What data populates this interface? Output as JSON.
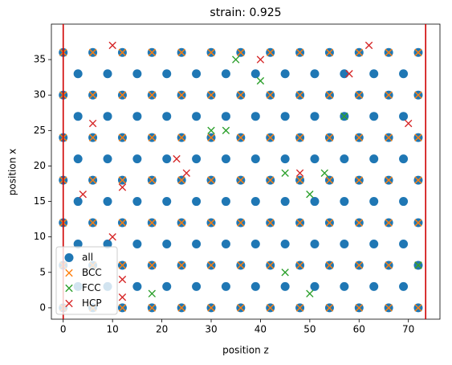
{
  "chart_data": {
    "type": "scatter",
    "title": "strain: 0.925",
    "xlabel": "position z",
    "ylabel": "position x",
    "xlim": [
      -2.4,
      76.4
    ],
    "ylim": [
      -1.6,
      40.0
    ],
    "xticks": [
      0,
      10,
      20,
      30,
      40,
      50,
      60,
      70
    ],
    "yticks": [
      0,
      5,
      10,
      15,
      20,
      25,
      30,
      35
    ],
    "vlines": [
      0,
      73.5
    ],
    "vline_color": "#d00000",
    "legend": "lower left",
    "series": [
      {
        "name": "all",
        "color": "#1f77b4",
        "marker": "circle",
        "x": [
          0,
          6,
          12,
          18,
          24,
          30,
          36,
          42,
          48,
          54,
          60,
          66,
          72,
          3,
          9,
          15,
          21,
          27,
          33,
          39,
          45,
          51,
          57,
          63,
          69,
          0,
          6,
          12,
          18,
          24,
          30,
          36,
          42,
          48,
          54,
          60,
          66,
          72,
          3,
          9,
          15,
          21,
          27,
          33,
          39,
          45,
          51,
          57,
          63,
          69,
          0,
          6,
          12,
          18,
          24,
          30,
          36,
          42,
          48,
          54,
          60,
          66,
          72,
          3,
          9,
          15,
          21,
          27,
          33,
          39,
          45,
          51,
          57,
          63,
          69,
          0,
          6,
          12,
          18,
          24,
          30,
          36,
          42,
          48,
          54,
          60,
          66,
          72,
          3,
          9,
          15,
          21,
          27,
          33,
          39,
          45,
          51,
          57,
          63,
          69,
          0,
          6,
          12,
          18,
          24,
          30,
          36,
          42,
          48,
          54,
          60,
          66,
          72,
          3,
          9,
          15,
          21,
          27,
          33,
          39,
          45,
          51,
          57,
          63,
          69,
          0,
          6,
          12,
          18,
          24,
          30,
          36,
          42,
          48,
          54,
          60,
          66,
          72,
          3,
          9,
          15,
          21,
          27,
          33,
          39,
          45,
          51,
          57,
          63,
          69,
          0,
          6,
          12,
          18,
          24,
          30,
          36,
          42,
          48,
          54,
          60,
          66,
          72
        ],
        "y": [
          0,
          0,
          0,
          0,
          0,
          0,
          0,
          0,
          0,
          0,
          0,
          0,
          0,
          3,
          3,
          3,
          3,
          3,
          3,
          3,
          3,
          3,
          3,
          3,
          3,
          6,
          6,
          6,
          6,
          6,
          6,
          6,
          6,
          6,
          6,
          6,
          6,
          6,
          9,
          9,
          9,
          9,
          9,
          9,
          9,
          9,
          9,
          9,
          9,
          9,
          12,
          12,
          12,
          12,
          12,
          12,
          12,
          12,
          12,
          12,
          12,
          12,
          12,
          15,
          15,
          15,
          15,
          15,
          15,
          15,
          15,
          15,
          15,
          15,
          15,
          18,
          18,
          18,
          18,
          18,
          18,
          18,
          18,
          18,
          18,
          18,
          18,
          18,
          21,
          21,
          21,
          21,
          21,
          21,
          21,
          21,
          21,
          21,
          21,
          21,
          24,
          24,
          24,
          24,
          24,
          24,
          24,
          24,
          24,
          24,
          24,
          24,
          24,
          27,
          27,
          27,
          27,
          27,
          27,
          27,
          27,
          27,
          27,
          27,
          27,
          30,
          30,
          30,
          30,
          30,
          30,
          30,
          30,
          30,
          30,
          30,
          30,
          30,
          33,
          33,
          33,
          33,
          33,
          33,
          33,
          33,
          33,
          33,
          33,
          33,
          36,
          36,
          36,
          36,
          36,
          36,
          36,
          36,
          36,
          36,
          36,
          36,
          36
        ]
      },
      {
        "name": "BCC",
        "color": "#ff7f0e",
        "marker": "x",
        "x": [
          0,
          6,
          12,
          18,
          24,
          30,
          36,
          42,
          48,
          54,
          60,
          66,
          72,
          0,
          6,
          12,
          18,
          24,
          30,
          36,
          42,
          48,
          54,
          60,
          66,
          72,
          0,
          6,
          12,
          18,
          24,
          30,
          36,
          42,
          48,
          54,
          60,
          66,
          72,
          0,
          6,
          12,
          18,
          24,
          30,
          36,
          42,
          48,
          54,
          60,
          66,
          72,
          0,
          6,
          12,
          18,
          24,
          30,
          36,
          42,
          48,
          54,
          60,
          66,
          72,
          0,
          6,
          12,
          18,
          24,
          30,
          36,
          42,
          48,
          54,
          60,
          66,
          72,
          0,
          6,
          12,
          18,
          24,
          30,
          36,
          42,
          48,
          54,
          60,
          66,
          72
        ],
        "y": [
          0,
          0,
          0,
          0,
          0,
          0,
          0,
          0,
          0,
          0,
          0,
          0,
          0,
          6,
          6,
          6,
          6,
          6,
          6,
          6,
          6,
          6,
          6,
          6,
          6,
          6,
          12,
          12,
          12,
          12,
          12,
          12,
          12,
          12,
          12,
          12,
          12,
          12,
          12,
          18,
          18,
          18,
          18,
          18,
          18,
          18,
          18,
          18,
          18,
          18,
          18,
          18,
          24,
          24,
          24,
          24,
          24,
          24,
          24,
          24,
          24,
          24,
          24,
          24,
          24,
          30,
          30,
          30,
          30,
          30,
          30,
          30,
          30,
          30,
          30,
          30,
          30,
          30,
          36,
          36,
          36,
          36,
          36,
          36,
          36,
          36,
          36,
          36,
          36,
          36,
          36
        ]
      },
      {
        "name": "FCC",
        "color": "#2ca02c",
        "marker": "x",
        "x": [
          35,
          40,
          30,
          33,
          45,
          53,
          50,
          57,
          72,
          45,
          50,
          18
        ],
        "y": [
          35,
          32,
          25,
          25,
          19,
          19,
          16,
          27,
          6,
          5,
          2,
          2
        ]
      },
      {
        "name": "HCP",
        "color": "#d62728",
        "marker": "x",
        "x": [
          10,
          40,
          62,
          58,
          6,
          70,
          23,
          25,
          48,
          4,
          12,
          12,
          12,
          10
        ],
        "y": [
          37,
          35,
          37,
          33,
          26,
          26,
          21,
          19,
          19,
          16,
          17,
          4,
          1.5,
          10
        ]
      }
    ]
  }
}
